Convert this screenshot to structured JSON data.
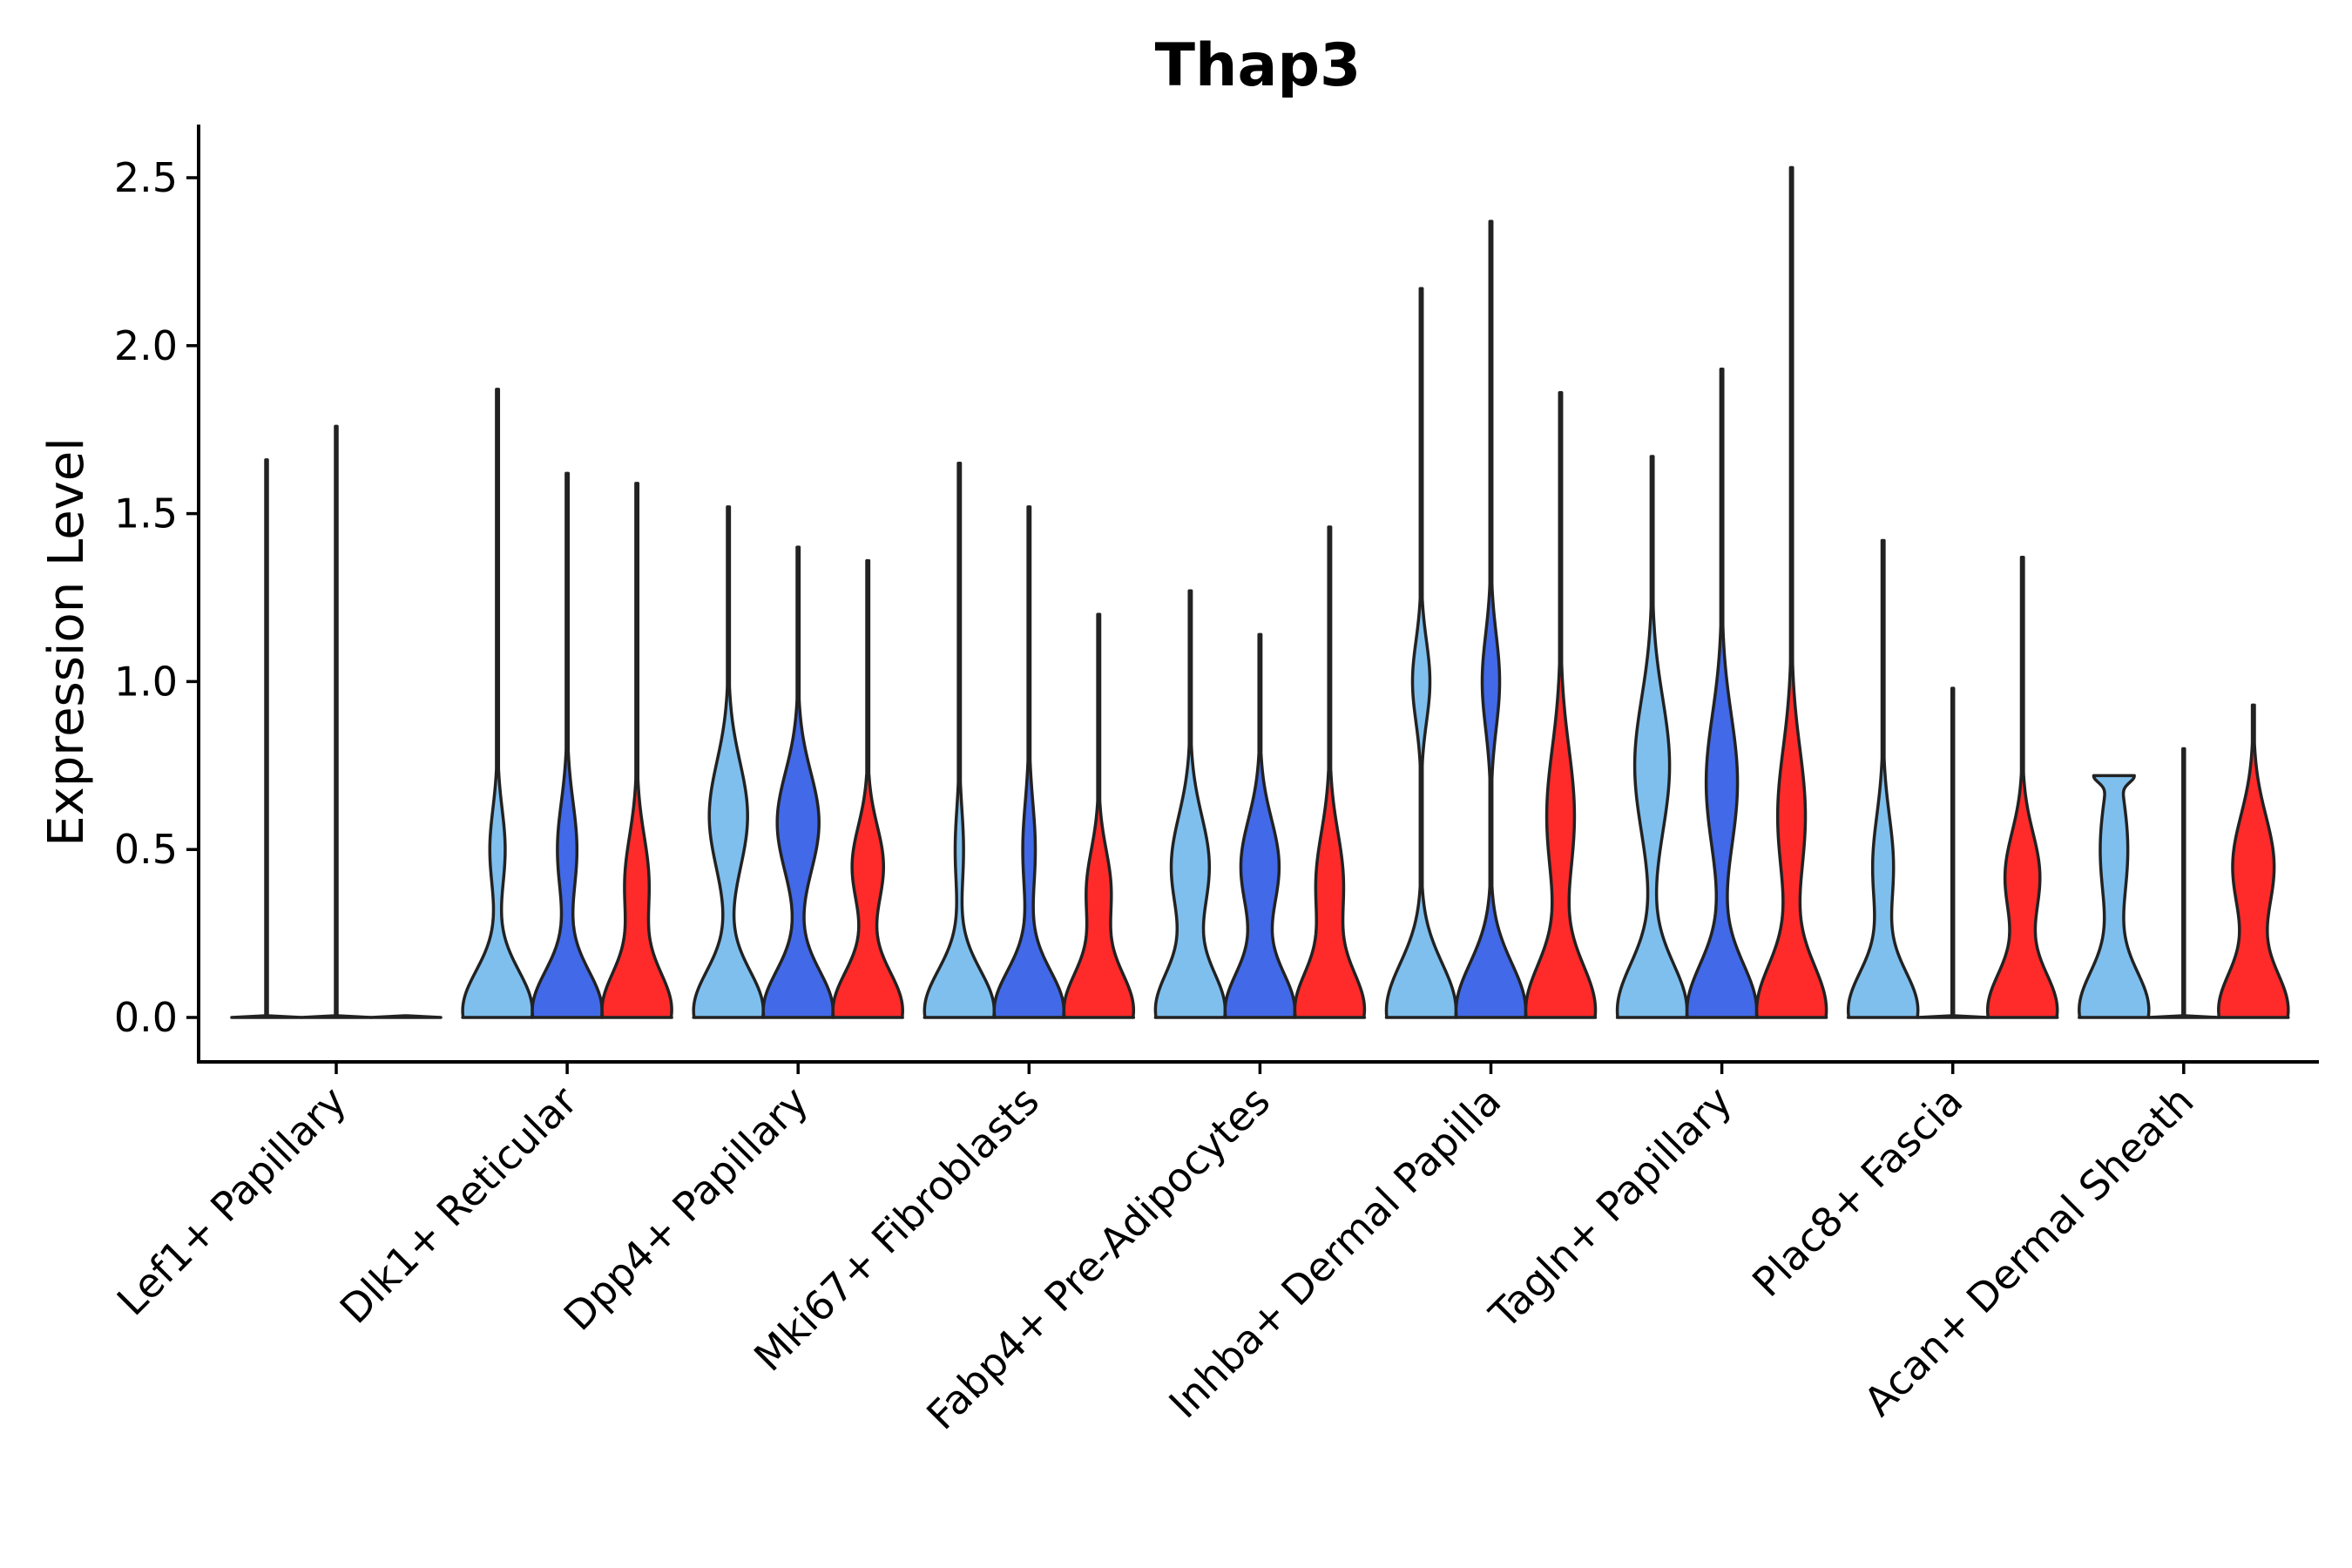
{
  "chart_data": {
    "type": "violin",
    "title": "Thap3",
    "xlabel": "",
    "ylabel": "Expression Level",
    "ylim": [
      -0.13,
      2.66
    ],
    "yticks": [
      0.0,
      0.5,
      1.0,
      1.5,
      2.0,
      2.5
    ],
    "ytick_labels": [
      "0.0",
      "0.5",
      "1.0",
      "1.5",
      "2.0",
      "2.5"
    ],
    "grid": false,
    "legend": "none",
    "groups": [
      {
        "name": "group-1",
        "color": "#7fbfee"
      },
      {
        "name": "group-2",
        "color": "#4169e8"
      },
      {
        "name": "group-3",
        "color": "#ff2a2a"
      }
    ],
    "categories": [
      "Lef1+ Papillary",
      "Dlk1+ Reticular",
      "Dpp4+ Papillary",
      "Mki67+ Fibroblasts",
      "Fabp4+ Pre-Adipocytes",
      "Inhba+ Dermal Papilla",
      "Tagln+ Papillary",
      "Plac8+ Fascia",
      "Acan+ Dermal Sheath"
    ],
    "violins": [
      {
        "category": 0,
        "group": 0,
        "max": 1.66,
        "peaks": [],
        "flat": true
      },
      {
        "category": 0,
        "group": 1,
        "max": 1.76,
        "peaks": [],
        "flat": true
      },
      {
        "category": 0,
        "group": 2,
        "max": 0.0,
        "peaks": [],
        "flat": true
      },
      {
        "category": 1,
        "group": 0,
        "max": 1.87,
        "peaks": [
          [
            0.02,
            1.0,
            0.12
          ],
          [
            0.5,
            0.22,
            0.12
          ]
        ]
      },
      {
        "category": 1,
        "group": 1,
        "max": 1.62,
        "peaks": [
          [
            0.02,
            1.0,
            0.12
          ],
          [
            0.5,
            0.28,
            0.14
          ]
        ]
      },
      {
        "category": 1,
        "group": 2,
        "max": 1.59,
        "peaks": [
          [
            0.02,
            1.0,
            0.12
          ],
          [
            0.4,
            0.35,
            0.14
          ]
        ]
      },
      {
        "category": 2,
        "group": 0,
        "max": 1.52,
        "peaks": [
          [
            0.02,
            1.0,
            0.12
          ],
          [
            0.6,
            0.55,
            0.16
          ]
        ]
      },
      {
        "category": 2,
        "group": 1,
        "max": 1.4,
        "peaks": [
          [
            0.02,
            1.0,
            0.12
          ],
          [
            0.58,
            0.6,
            0.15
          ]
        ]
      },
      {
        "category": 2,
        "group": 2,
        "max": 1.36,
        "peaks": [
          [
            0.02,
            1.0,
            0.12
          ],
          [
            0.45,
            0.45,
            0.12
          ]
        ]
      },
      {
        "category": 3,
        "group": 0,
        "max": 1.65,
        "peaks": [
          [
            0.02,
            1.0,
            0.12
          ],
          [
            0.5,
            0.12,
            0.12
          ]
        ]
      },
      {
        "category": 3,
        "group": 1,
        "max": 1.52,
        "peaks": [
          [
            0.02,
            1.0,
            0.12
          ],
          [
            0.5,
            0.18,
            0.14
          ]
        ]
      },
      {
        "category": 3,
        "group": 2,
        "max": 1.2,
        "peaks": [
          [
            0.02,
            1.0,
            0.12
          ],
          [
            0.38,
            0.35,
            0.12
          ]
        ]
      },
      {
        "category": 4,
        "group": 0,
        "max": 1.27,
        "peaks": [
          [
            0.02,
            1.0,
            0.12
          ],
          [
            0.45,
            0.55,
            0.15
          ]
        ]
      },
      {
        "category": 4,
        "group": 1,
        "max": 1.14,
        "peaks": [
          [
            0.02,
            1.0,
            0.12
          ],
          [
            0.45,
            0.55,
            0.14
          ]
        ]
      },
      {
        "category": 4,
        "group": 2,
        "max": 1.46,
        "peaks": [
          [
            0.02,
            1.0,
            0.12
          ],
          [
            0.4,
            0.4,
            0.15
          ]
        ]
      },
      {
        "category": 5,
        "group": 0,
        "max": 2.17,
        "peaks": [
          [
            0.02,
            1.0,
            0.14
          ],
          [
            1.0,
            0.25,
            0.12
          ]
        ]
      },
      {
        "category": 5,
        "group": 1,
        "max": 2.37,
        "peaks": [
          [
            0.02,
            1.0,
            0.14
          ],
          [
            1.0,
            0.25,
            0.14
          ]
        ]
      },
      {
        "category": 5,
        "group": 2,
        "max": 1.86,
        "peaks": [
          [
            0.02,
            1.0,
            0.14
          ],
          [
            0.6,
            0.4,
            0.2
          ]
        ]
      },
      {
        "category": 6,
        "group": 0,
        "max": 1.67,
        "peaks": [
          [
            0.02,
            1.0,
            0.14
          ],
          [
            0.75,
            0.5,
            0.2
          ]
        ]
      },
      {
        "category": 6,
        "group": 1,
        "max": 1.93,
        "peaks": [
          [
            0.02,
            1.0,
            0.14
          ],
          [
            0.7,
            0.45,
            0.2
          ]
        ]
      },
      {
        "category": 6,
        "group": 2,
        "max": 2.53,
        "peaks": [
          [
            0.02,
            1.0,
            0.14
          ],
          [
            0.6,
            0.4,
            0.2
          ]
        ]
      },
      {
        "category": 7,
        "group": 0,
        "max": 1.42,
        "peaks": [
          [
            0.02,
            1.0,
            0.12
          ],
          [
            0.45,
            0.3,
            0.15
          ]
        ]
      },
      {
        "category": 7,
        "group": 1,
        "max": 0.98,
        "peaks": [],
        "flat": true
      },
      {
        "category": 7,
        "group": 2,
        "max": 1.37,
        "peaks": [
          [
            0.02,
            1.0,
            0.12
          ],
          [
            0.42,
            0.5,
            0.13
          ]
        ]
      },
      {
        "category": 8,
        "group": 0,
        "max": 0.72,
        "peaks": [
          [
            0.02,
            1.0,
            0.12
          ],
          [
            0.5,
            0.4,
            0.18
          ],
          [
            0.72,
            0.4,
            0.02
          ]
        ]
      },
      {
        "category": 8,
        "group": 1,
        "max": 0.8,
        "peaks": [],
        "flat": true
      },
      {
        "category": 8,
        "group": 2,
        "max": 0.93,
        "peaks": [
          [
            0.02,
            1.0,
            0.12
          ],
          [
            0.45,
            0.6,
            0.15
          ]
        ]
      }
    ]
  }
}
